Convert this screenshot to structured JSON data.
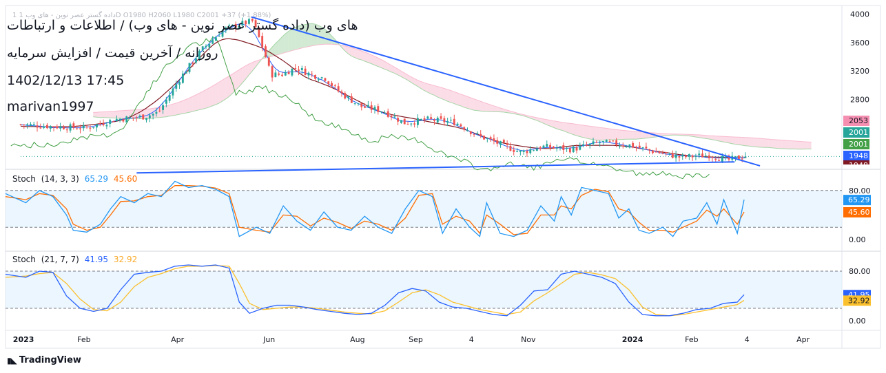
{
  "header": {
    "title": "های وب (داده گستر عصر نوین - های وب) / اطلاعات و ارتباطات",
    "subtitle": "روزانه / آخرین قیمت / افزایش سرمایه",
    "datetime": "1402/12/13 17:45",
    "author": "marivan1997",
    "ohlc_faded": "1   داده گستر عصر نوین - های وب   1D  O1980  H2060  L1980  C2001  +37 (+1.88%)"
  },
  "brand": {
    "logo_text": "TradingView"
  },
  "colors": {
    "up": "#26a69a",
    "down": "#ef5350",
    "trendline": "#2962ff",
    "tenkan": "#2962ff",
    "kijun": "#801922",
    "chikou": "#43a047",
    "kumo_bull": "#a5d6a7",
    "kumo_bear": "#f8bbd0",
    "stoch_k": "#2196f3",
    "stoch_d": "#ff6d00",
    "stoch2_k": "#2962ff",
    "stoch2_d": "#fbc02d",
    "band_fill": "#e3f2fd"
  },
  "price_axis": {
    "ticks": [
      "4000",
      "3600",
      "3200",
      "2800"
    ],
    "badges": [
      {
        "label": "2053",
        "bg": "#f48fb1",
        "color": "#131722"
      },
      {
        "label": "2001",
        "bg": "#26a69a",
        "color": "#ffffff"
      },
      {
        "label": "2001",
        "bg": "#43a047",
        "color": "#ffffff"
      },
      {
        "label": "1948",
        "bg": "#2962ff",
        "color": "#ffffff"
      },
      {
        "label": "1948",
        "bg": "#801922",
        "color": "#ffffff"
      }
    ]
  },
  "stoch1": {
    "name": "Stoch",
    "params": "(14, 3, 3)",
    "k_value": "65.29",
    "d_value": "45.60",
    "ticks": [
      "80.00",
      "0.00"
    ]
  },
  "stoch2": {
    "name": "Stoch",
    "params": "(21, 7, 7)",
    "k_value": "41.95",
    "d_value": "32.92",
    "ticks": [
      "80.00",
      "0.00"
    ]
  },
  "time_axis": {
    "labels": [
      "2023",
      "Feb",
      "Apr",
      "Jun",
      "Aug",
      "Sep",
      "4",
      "Nov",
      "2024",
      "Feb",
      "4",
      "Apr"
    ]
  },
  "chart_data": {
    "type": "candlestick",
    "price_range": [
      1850,
      4100
    ],
    "price_anchors": [
      {
        "x": 0.0,
        "close": 2450
      },
      {
        "x": 0.05,
        "close": 2420
      },
      {
        "x": 0.09,
        "close": 2400
      },
      {
        "x": 0.13,
        "close": 2520
      },
      {
        "x": 0.17,
        "close": 2560
      },
      {
        "x": 0.19,
        "close": 2620
      },
      {
        "x": 0.22,
        "close": 3100
      },
      {
        "x": 0.25,
        "close": 3500
      },
      {
        "x": 0.28,
        "close": 3780
      },
      {
        "x": 0.3,
        "close": 3850
      },
      {
        "x": 0.32,
        "close": 3900
      },
      {
        "x": 0.335,
        "close": 3500
      },
      {
        "x": 0.345,
        "close": 3150
      },
      {
        "x": 0.36,
        "close": 3150
      },
      {
        "x": 0.38,
        "close": 3250
      },
      {
        "x": 0.4,
        "close": 3150
      },
      {
        "x": 0.42,
        "close": 3100
      },
      {
        "x": 0.44,
        "close": 2900
      },
      {
        "x": 0.47,
        "close": 2700
      },
      {
        "x": 0.5,
        "close": 2640
      },
      {
        "x": 0.53,
        "close": 2470
      },
      {
        "x": 0.56,
        "close": 2520
      },
      {
        "x": 0.6,
        "close": 2480
      },
      {
        "x": 0.63,
        "close": 2300
      },
      {
        "x": 0.66,
        "close": 2180
      },
      {
        "x": 0.69,
        "close": 2060
      },
      {
        "x": 0.72,
        "close": 2140
      },
      {
        "x": 0.76,
        "close": 2100
      },
      {
        "x": 0.8,
        "close": 2200
      },
      {
        "x": 0.84,
        "close": 2160
      },
      {
        "x": 0.87,
        "close": 2080
      },
      {
        "x": 0.91,
        "close": 1990
      },
      {
        "x": 0.95,
        "close": 2020
      },
      {
        "x": 0.975,
        "close": 1950
      },
      {
        "x": 1.0,
        "close": 2001
      }
    ],
    "trendlines": [
      {
        "from": {
          "x": 0.318,
          "price": 3960
        },
        "to": {
          "x": 1.02,
          "price": 1870
        }
      },
      {
        "from": {
          "x": 0.16,
          "price": 1770
        },
        "to": {
          "x": 0.985,
          "price": 1925
        }
      }
    ],
    "last": {
      "open": 1980,
      "high": 2060,
      "low": 1980,
      "close": 2001,
      "change": 37,
      "change_pct": 1.88
    },
    "stoch_14_3_3": {
      "k_anchors": [
        [
          0,
          75
        ],
        [
          0.03,
          60
        ],
        [
          0.05,
          80
        ],
        [
          0.07,
          70
        ],
        [
          0.09,
          40
        ],
        [
          0.1,
          15
        ],
        [
          0.12,
          12
        ],
        [
          0.14,
          25
        ],
        [
          0.155,
          50
        ],
        [
          0.17,
          70
        ],
        [
          0.19,
          60
        ],
        [
          0.21,
          75
        ],
        [
          0.23,
          70
        ],
        [
          0.25,
          95
        ],
        [
          0.27,
          85
        ],
        [
          0.29,
          88
        ],
        [
          0.31,
          82
        ],
        [
          0.33,
          70
        ],
        [
          0.345,
          5
        ],
        [
          0.37,
          20
        ],
        [
          0.39,
          10
        ],
        [
          0.41,
          55
        ],
        [
          0.43,
          30
        ],
        [
          0.45,
          15
        ],
        [
          0.47,
          45
        ],
        [
          0.49,
          20
        ],
        [
          0.51,
          15
        ],
        [
          0.53,
          38
        ],
        [
          0.55,
          20
        ],
        [
          0.57,
          10
        ],
        [
          0.59,
          50
        ],
        [
          0.61,
          80
        ],
        [
          0.63,
          70
        ],
        [
          0.645,
          10
        ],
        [
          0.665,
          50
        ],
        [
          0.685,
          20
        ],
        [
          0.7,
          5
        ],
        [
          0.71,
          60
        ],
        [
          0.73,
          10
        ],
        [
          0.75,
          5
        ],
        [
          0.77,
          15
        ],
        [
          0.79,
          55
        ],
        [
          0.81,
          30
        ],
        [
          0.82,
          70
        ],
        [
          0.835,
          40
        ],
        [
          0.85,
          85
        ],
        [
          0.87,
          80
        ],
        [
          0.89,
          75
        ],
        [
          0.905,
          35
        ],
        [
          0.92,
          50
        ],
        [
          0.935,
          15
        ],
        [
          0.95,
          10
        ],
        [
          0.97,
          20
        ],
        [
          0.985,
          5
        ],
        [
          1.0,
          30
        ],
        [
          1.02,
          35
        ],
        [
          1.035,
          60
        ],
        [
          1.05,
          25
        ],
        [
          1.06,
          65
        ],
        [
          1.08,
          10
        ],
        [
          1.09,
          65
        ]
      ],
      "d_anchors": [
        [
          0,
          70
        ],
        [
          0.03,
          65
        ],
        [
          0.05,
          75
        ],
        [
          0.07,
          72
        ],
        [
          0.09,
          50
        ],
        [
          0.1,
          25
        ],
        [
          0.12,
          15
        ],
        [
          0.14,
          20
        ],
        [
          0.155,
          40
        ],
        [
          0.17,
          62
        ],
        [
          0.19,
          63
        ],
        [
          0.21,
          70
        ],
        [
          0.23,
          72
        ],
        [
          0.25,
          88
        ],
        [
          0.27,
          88
        ],
        [
          0.29,
          87
        ],
        [
          0.31,
          84
        ],
        [
          0.33,
          75
        ],
        [
          0.345,
          20
        ],
        [
          0.37,
          15
        ],
        [
          0.39,
          12
        ],
        [
          0.41,
          40
        ],
        [
          0.43,
          38
        ],
        [
          0.45,
          22
        ],
        [
          0.47,
          35
        ],
        [
          0.49,
          28
        ],
        [
          0.51,
          18
        ],
        [
          0.53,
          30
        ],
        [
          0.55,
          25
        ],
        [
          0.57,
          15
        ],
        [
          0.59,
          35
        ],
        [
          0.61,
          72
        ],
        [
          0.63,
          75
        ],
        [
          0.645,
          25
        ],
        [
          0.665,
          38
        ],
        [
          0.685,
          30
        ],
        [
          0.7,
          10
        ],
        [
          0.71,
          40
        ],
        [
          0.73,
          25
        ],
        [
          0.75,
          8
        ],
        [
          0.77,
          10
        ],
        [
          0.79,
          40
        ],
        [
          0.81,
          40
        ],
        [
          0.82,
          55
        ],
        [
          0.835,
          50
        ],
        [
          0.85,
          72
        ],
        [
          0.87,
          82
        ],
        [
          0.89,
          78
        ],
        [
          0.905,
          50
        ],
        [
          0.92,
          45
        ],
        [
          0.935,
          28
        ],
        [
          0.95,
          15
        ],
        [
          0.97,
          15
        ],
        [
          0.985,
          12
        ],
        [
          1.0,
          20
        ],
        [
          1.02,
          30
        ],
        [
          1.035,
          48
        ],
        [
          1.05,
          38
        ],
        [
          1.06,
          50
        ],
        [
          1.08,
          25
        ],
        [
          1.09,
          45
        ]
      ]
    },
    "stoch_21_7_7": {
      "k_anchors": [
        [
          0,
          75
        ],
        [
          0.03,
          70
        ],
        [
          0.05,
          80
        ],
        [
          0.07,
          78
        ],
        [
          0.09,
          40
        ],
        [
          0.11,
          20
        ],
        [
          0.13,
          15
        ],
        [
          0.15,
          20
        ],
        [
          0.17,
          50
        ],
        [
          0.19,
          75
        ],
        [
          0.21,
          78
        ],
        [
          0.23,
          80
        ],
        [
          0.25,
          88
        ],
        [
          0.27,
          90
        ],
        [
          0.29,
          88
        ],
        [
          0.31,
          90
        ],
        [
          0.33,
          85
        ],
        [
          0.345,
          30
        ],
        [
          0.36,
          12
        ],
        [
          0.38,
          20
        ],
        [
          0.4,
          25
        ],
        [
          0.42,
          25
        ],
        [
          0.44,
          22
        ],
        [
          0.46,
          18
        ],
        [
          0.48,
          15
        ],
        [
          0.5,
          12
        ],
        [
          0.52,
          10
        ],
        [
          0.54,
          12
        ],
        [
          0.56,
          25
        ],
        [
          0.58,
          45
        ],
        [
          0.6,
          52
        ],
        [
          0.62,
          48
        ],
        [
          0.64,
          30
        ],
        [
          0.66,
          22
        ],
        [
          0.68,
          20
        ],
        [
          0.7,
          15
        ],
        [
          0.72,
          10
        ],
        [
          0.74,
          8
        ],
        [
          0.76,
          25
        ],
        [
          0.78,
          48
        ],
        [
          0.8,
          50
        ],
        [
          0.82,
          75
        ],
        [
          0.84,
          80
        ],
        [
          0.86,
          75
        ],
        [
          0.88,
          70
        ],
        [
          0.9,
          60
        ],
        [
          0.92,
          30
        ],
        [
          0.94,
          10
        ],
        [
          0.96,
          8
        ],
        [
          0.98,
          8
        ],
        [
          1.0,
          12
        ],
        [
          1.02,
          18
        ],
        [
          1.04,
          20
        ],
        [
          1.06,
          28
        ],
        [
          1.08,
          30
        ],
        [
          1.09,
          41.95
        ]
      ],
      "d_anchors": [
        [
          0,
          70
        ],
        [
          0.03,
          72
        ],
        [
          0.05,
          76
        ],
        [
          0.07,
          78
        ],
        [
          0.09,
          60
        ],
        [
          0.11,
          35
        ],
        [
          0.13,
          18
        ],
        [
          0.15,
          16
        ],
        [
          0.17,
          30
        ],
        [
          0.19,
          55
        ],
        [
          0.21,
          70
        ],
        [
          0.23,
          76
        ],
        [
          0.25,
          84
        ],
        [
          0.27,
          88
        ],
        [
          0.29,
          88
        ],
        [
          0.31,
          89
        ],
        [
          0.33,
          88
        ],
        [
          0.345,
          60
        ],
        [
          0.36,
          28
        ],
        [
          0.38,
          18
        ],
        [
          0.4,
          20
        ],
        [
          0.42,
          22
        ],
        [
          0.44,
          22
        ],
        [
          0.46,
          20
        ],
        [
          0.48,
          17
        ],
        [
          0.5,
          14
        ],
        [
          0.52,
          12
        ],
        [
          0.54,
          11
        ],
        [
          0.56,
          16
        ],
        [
          0.58,
          30
        ],
        [
          0.6,
          45
        ],
        [
          0.62,
          50
        ],
        [
          0.64,
          42
        ],
        [
          0.66,
          30
        ],
        [
          0.68,
          24
        ],
        [
          0.7,
          18
        ],
        [
          0.72,
          14
        ],
        [
          0.74,
          10
        ],
        [
          0.76,
          14
        ],
        [
          0.78,
          32
        ],
        [
          0.8,
          45
        ],
        [
          0.82,
          60
        ],
        [
          0.84,
          75
        ],
        [
          0.86,
          78
        ],
        [
          0.88,
          74
        ],
        [
          0.9,
          68
        ],
        [
          0.92,
          50
        ],
        [
          0.94,
          22
        ],
        [
          0.96,
          10
        ],
        [
          0.98,
          8
        ],
        [
          1.0,
          10
        ],
        [
          1.02,
          14
        ],
        [
          1.04,
          18
        ],
        [
          1.06,
          22
        ],
        [
          1.08,
          26
        ],
        [
          1.09,
          32.92
        ]
      ]
    }
  }
}
